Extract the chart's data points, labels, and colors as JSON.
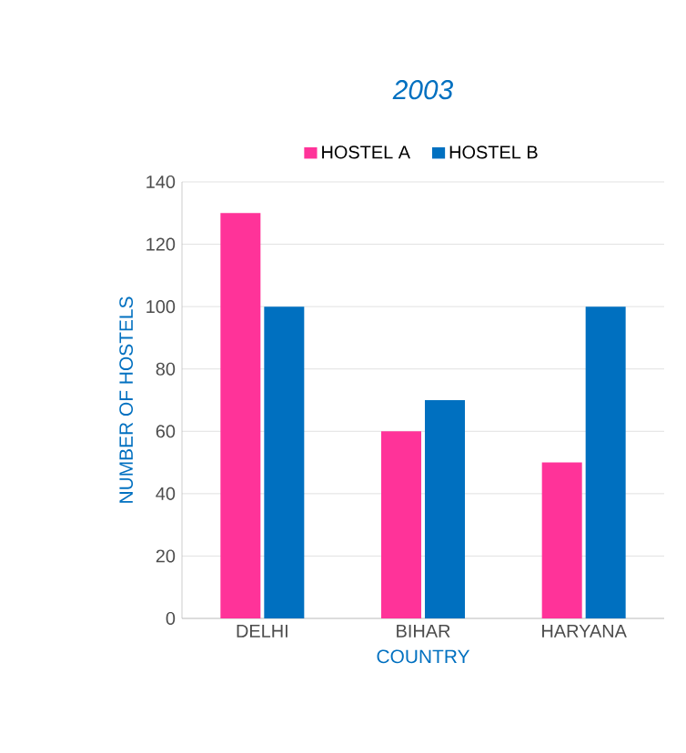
{
  "chart_data": {
    "type": "bar",
    "title": "2003",
    "xlabel": "COUNTRY",
    "ylabel": "NUMBER OF HOSTELS",
    "categories": [
      "DELHI",
      "BIHAR",
      "HARYANA"
    ],
    "series": [
      {
        "name": "HOSTEL A",
        "color": "#ff3399",
        "values": [
          130,
          60,
          50
        ]
      },
      {
        "name": "HOSTEL B",
        "color": "#0070c0",
        "values": [
          100,
          70,
          100
        ]
      }
    ],
    "ylim": [
      0,
      140
    ],
    "yticks": [
      0,
      20,
      40,
      60,
      80,
      100,
      120,
      140
    ],
    "grid": "y",
    "legend": "top"
  }
}
